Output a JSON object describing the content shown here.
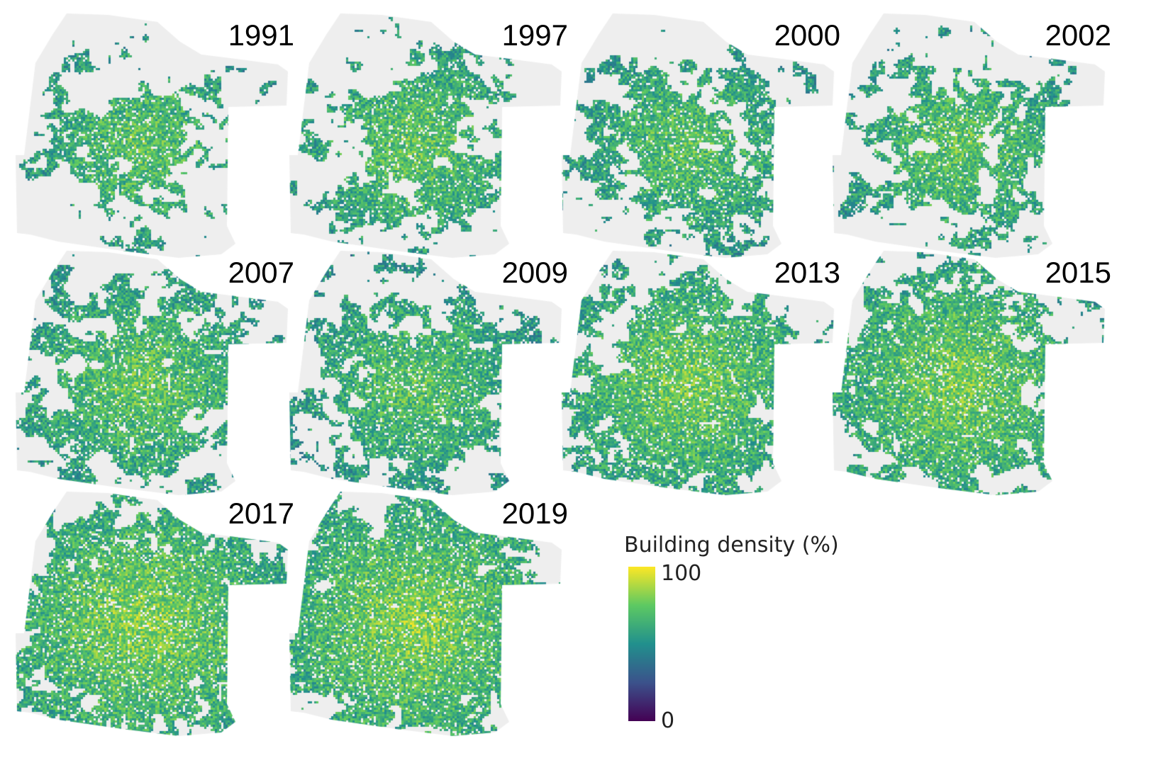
{
  "panels": [
    {
      "year": "1991",
      "density_level": 0.55,
      "coverage": 0.58
    },
    {
      "year": "1997",
      "density_level": 0.58,
      "coverage": 0.62
    },
    {
      "year": "2000",
      "density_level": 0.55,
      "coverage": 0.65
    },
    {
      "year": "2002",
      "density_level": 0.58,
      "coverage": 0.64
    },
    {
      "year": "2007",
      "density_level": 0.6,
      "coverage": 0.7
    },
    {
      "year": "2009",
      "density_level": 0.55,
      "coverage": 0.72
    },
    {
      "year": "2013",
      "density_level": 0.68,
      "coverage": 0.76
    },
    {
      "year": "2015",
      "density_level": 0.7,
      "coverage": 0.78
    },
    {
      "year": "2017",
      "density_level": 0.76,
      "coverage": 0.84
    },
    {
      "year": "2019",
      "density_level": 0.76,
      "coverage": 0.85
    }
  ],
  "legend": {
    "title": "Building density (%)",
    "max_label": "100",
    "min_label": "0",
    "colors": [
      "#440154",
      "#3b528b",
      "#21908d",
      "#5dc962",
      "#fde725"
    ]
  },
  "background_color": "#eeeeee"
}
